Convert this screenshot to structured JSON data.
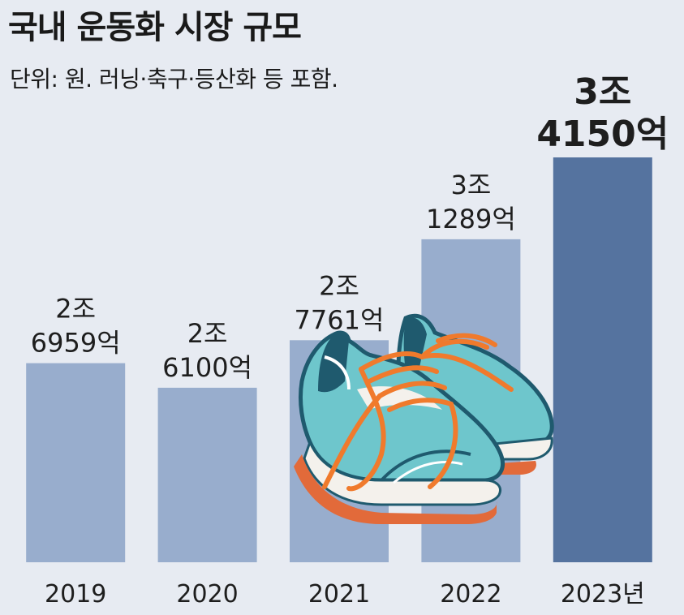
{
  "title": "국내 운동화 시장 규모",
  "subtitle": "단위: 원. 러닝·축구·등산화 등 포함.",
  "colors": {
    "background": "#e7ebf2",
    "bar": "#98adcd",
    "bar_highlight": "#55739f",
    "shoe_body": "#6ec6cc",
    "shoe_dark": "#1f5a6e",
    "lace": "#f07a2c",
    "sole": "#f4f1ec"
  },
  "illustration": "running-shoes",
  "chart_data": {
    "type": "bar",
    "categories": [
      "2019",
      "2020",
      "2021",
      "2022",
      "2023년"
    ],
    "values": [
      26959,
      26100,
      27761,
      31289,
      34150
    ],
    "unit": "억 원",
    "value_labels": [
      [
        "2조",
        "6959억"
      ],
      [
        "2조",
        "6100억"
      ],
      [
        "2조",
        "7761억"
      ],
      [
        "3조",
        "1289억"
      ],
      [
        "3조",
        "4150억"
      ]
    ],
    "highlight_index": 4,
    "title": "국내 운동화 시장 규모",
    "xlabel": "",
    "ylabel": "",
    "grid": false
  }
}
